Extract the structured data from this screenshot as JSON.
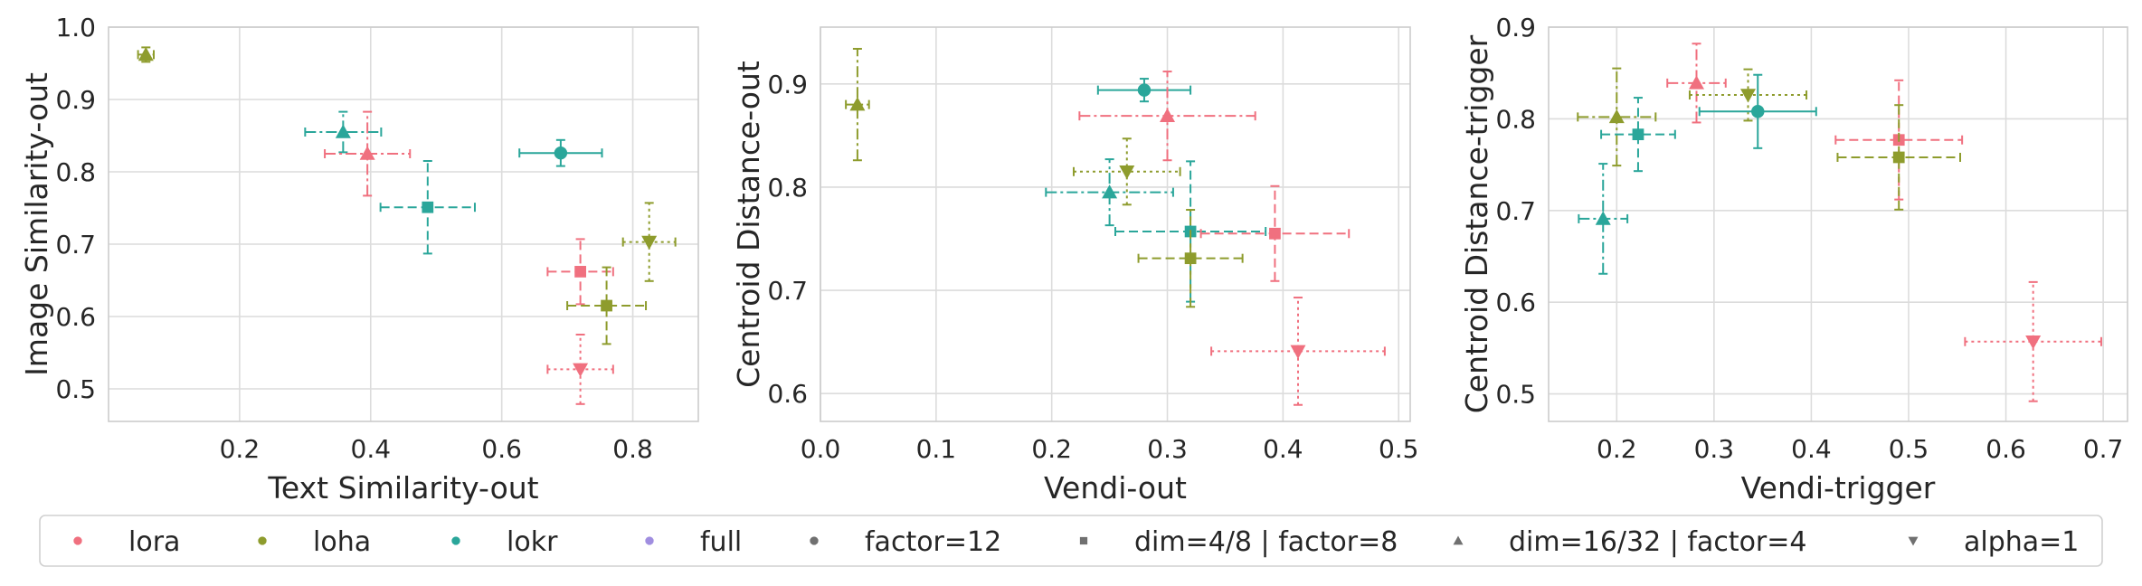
{
  "colors": {
    "lora": "#f0707f",
    "loha": "#8e9c2d",
    "lokr": "#2aa69a",
    "full": "#a08ee0",
    "marker_legend": "#707070"
  },
  "legend": {
    "placement": "bottom",
    "entries": [
      {
        "label": "lora",
        "kind": "color",
        "color": "#f0707f",
        "marker": "circle"
      },
      {
        "label": "loha",
        "kind": "color",
        "color": "#8e9c2d",
        "marker": "circle"
      },
      {
        "label": "lokr",
        "kind": "color",
        "color": "#2aa69a",
        "marker": "circle"
      },
      {
        "label": "full",
        "kind": "color",
        "color": "#a08ee0",
        "marker": "circle"
      },
      {
        "label": "factor=12",
        "kind": "marker",
        "color": "#707070",
        "marker": "circle"
      },
      {
        "label": "dim=4/8 | factor=8",
        "kind": "marker",
        "color": "#707070",
        "marker": "square"
      },
      {
        "label": "dim=16/32 | factor=4",
        "kind": "marker",
        "color": "#707070",
        "marker": "triangle"
      },
      {
        "label": "alpha=1",
        "kind": "marker",
        "color": "#707070",
        "marker": "tri_down"
      }
    ]
  },
  "chart_data": [
    {
      "type": "scatter",
      "xlabel": "Text Similarity-out",
      "ylabel": "Image Similarity-out",
      "xlim": [
        0.0,
        0.9
      ],
      "ylim": [
        0.455,
        1.0
      ],
      "xticks": [
        0.2,
        0.4,
        0.6,
        0.8
      ],
      "xticklabels": [
        "0.2",
        "0.4",
        "0.6",
        "0.8"
      ],
      "yticks": [
        0.5,
        0.6,
        0.7,
        0.8,
        0.9,
        1.0
      ],
      "yticklabels": [
        "0.5",
        "0.6",
        "0.7",
        "0.8",
        "0.9",
        "1.0"
      ],
      "grid": true,
      "points": [
        {
          "algo": "loha",
          "marker": "triangle",
          "x": 0.057,
          "y": 0.962,
          "xerr": 0.012,
          "yerr": 0.01
        },
        {
          "algo": "lokr",
          "marker": "triangle",
          "x": 0.358,
          "y": 0.855,
          "xerr": 0.058,
          "yerr": 0.028
        },
        {
          "algo": "lora",
          "marker": "triangle",
          "x": 0.395,
          "y": 0.825,
          "xerr": 0.065,
          "yerr": 0.058
        },
        {
          "algo": "lokr",
          "marker": "square",
          "x": 0.487,
          "y": 0.751,
          "xerr": 0.072,
          "yerr": 0.064
        },
        {
          "algo": "lokr",
          "marker": "circle",
          "x": 0.69,
          "y": 0.826,
          "xerr": 0.063,
          "yerr": 0.018
        },
        {
          "algo": "lora",
          "marker": "square",
          "x": 0.72,
          "y": 0.662,
          "xerr": 0.05,
          "yerr": 0.045
        },
        {
          "algo": "loha",
          "marker": "tri_down",
          "x": 0.825,
          "y": 0.703,
          "xerr": 0.04,
          "yerr": 0.054
        },
        {
          "algo": "loha",
          "marker": "square",
          "x": 0.76,
          "y": 0.615,
          "xerr": 0.06,
          "yerr": 0.053
        },
        {
          "algo": "lora",
          "marker": "tri_down",
          "x": 0.72,
          "y": 0.527,
          "xerr": 0.05,
          "yerr": 0.048
        }
      ]
    },
    {
      "type": "scatter",
      "xlabel": "Vendi-out",
      "ylabel": "Centroid Distance-out",
      "xlim": [
        0.0,
        0.51
      ],
      "ylim": [
        0.573,
        0.955
      ],
      "xticks": [
        0.0,
        0.1,
        0.2,
        0.3,
        0.4,
        0.5
      ],
      "xticklabels": [
        "0.0",
        "0.1",
        "0.2",
        "0.3",
        "0.4",
        "0.5"
      ],
      "yticks": [
        0.6,
        0.7,
        0.8,
        0.9
      ],
      "yticklabels": [
        "0.6",
        "0.7",
        "0.8",
        "0.9"
      ],
      "grid": true,
      "points": [
        {
          "algo": "loha",
          "marker": "triangle",
          "x": 0.032,
          "y": 0.88,
          "xerr": 0.01,
          "yerr": 0.054
        },
        {
          "algo": "lokr",
          "marker": "circle",
          "x": 0.28,
          "y": 0.894,
          "xerr": 0.04,
          "yerr": 0.011
        },
        {
          "algo": "lora",
          "marker": "triangle",
          "x": 0.3,
          "y": 0.869,
          "xerr": 0.076,
          "yerr": 0.043
        },
        {
          "algo": "loha",
          "marker": "tri_down",
          "x": 0.265,
          "y": 0.815,
          "xerr": 0.046,
          "yerr": 0.032
        },
        {
          "algo": "lokr",
          "marker": "triangle",
          "x": 0.25,
          "y": 0.795,
          "xerr": 0.055,
          "yerr": 0.032
        },
        {
          "algo": "lokr",
          "marker": "square",
          "x": 0.32,
          "y": 0.757,
          "xerr": 0.065,
          "yerr": 0.068
        },
        {
          "algo": "lora",
          "marker": "square",
          "x": 0.393,
          "y": 0.755,
          "xerr": 0.064,
          "yerr": 0.046
        },
        {
          "algo": "loha",
          "marker": "square",
          "x": 0.32,
          "y": 0.731,
          "xerr": 0.045,
          "yerr": 0.047
        },
        {
          "algo": "lora",
          "marker": "tri_down",
          "x": 0.413,
          "y": 0.641,
          "xerr": 0.075,
          "yerr": 0.052
        }
      ]
    },
    {
      "type": "scatter",
      "xlabel": "Vendi-trigger",
      "ylabel": "Centroid Distance-trigger",
      "xlim": [
        0.13,
        0.725
      ],
      "ylim": [
        0.47,
        0.9
      ],
      "xticks": [
        0.2,
        0.3,
        0.4,
        0.5,
        0.6,
        0.7
      ],
      "xticklabels": [
        "0.2",
        "0.3",
        "0.4",
        "0.5",
        "0.6",
        "0.7"
      ],
      "yticks": [
        0.5,
        0.6,
        0.7,
        0.8,
        0.9
      ],
      "yticklabels": [
        "0.5",
        "0.6",
        "0.7",
        "0.8",
        "0.9"
      ],
      "grid": true,
      "points": [
        {
          "algo": "lora",
          "marker": "triangle",
          "x": 0.282,
          "y": 0.839,
          "xerr": 0.03,
          "yerr": 0.043
        },
        {
          "algo": "loha",
          "marker": "tri_down",
          "x": 0.335,
          "y": 0.826,
          "xerr": 0.06,
          "yerr": 0.028
        },
        {
          "algo": "lokr",
          "marker": "circle",
          "x": 0.345,
          "y": 0.808,
          "xerr": 0.06,
          "yerr": 0.04
        },
        {
          "algo": "loha",
          "marker": "triangle",
          "x": 0.2,
          "y": 0.802,
          "xerr": 0.04,
          "yerr": 0.053
        },
        {
          "algo": "lokr",
          "marker": "square",
          "x": 0.222,
          "y": 0.783,
          "xerr": 0.038,
          "yerr": 0.04
        },
        {
          "algo": "lora",
          "marker": "square",
          "x": 0.49,
          "y": 0.777,
          "xerr": 0.065,
          "yerr": 0.065
        },
        {
          "algo": "loha",
          "marker": "square",
          "x": 0.49,
          "y": 0.758,
          "xerr": 0.063,
          "yerr": 0.057
        },
        {
          "algo": "lokr",
          "marker": "triangle",
          "x": 0.186,
          "y": 0.691,
          "xerr": 0.025,
          "yerr": 0.06
        },
        {
          "algo": "lora",
          "marker": "tri_down",
          "x": 0.628,
          "y": 0.557,
          "xerr": 0.07,
          "yerr": 0.065
        }
      ]
    }
  ]
}
